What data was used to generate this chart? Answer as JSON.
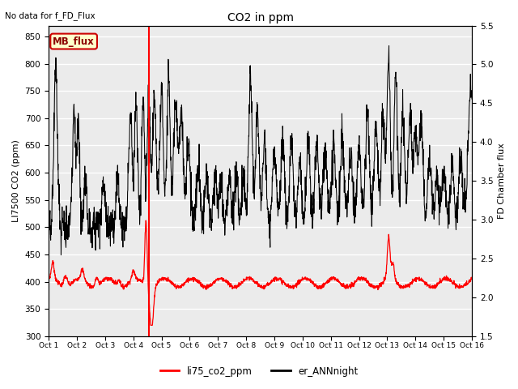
{
  "title": "CO2 in ppm",
  "title_top_left": "No data for f_FD_Flux",
  "ylabel_left": "LI7500 CO2 (ppm)",
  "ylabel_right": "FD Chamber flux",
  "ylim_left": [
    300,
    870
  ],
  "ylim_right": [
    1.5,
    5.5
  ],
  "yticks_left": [
    300,
    350,
    400,
    450,
    500,
    550,
    600,
    650,
    700,
    750,
    800,
    850
  ],
  "yticks_right": [
    1.5,
    2.0,
    2.5,
    3.0,
    3.5,
    4.0,
    4.5,
    5.0,
    5.5
  ],
  "xtick_labels": [
    "Oct 1",
    "Oct 2",
    "Oct 3",
    "Oct 4",
    "Oct 5",
    "Oct 6",
    "Oct 7",
    "Oct 8",
    "Oct 9",
    "Oct 10",
    "Oct 11",
    "Oct 12",
    "Oct 13",
    "Oct 14",
    "Oct 15",
    "Oct 16"
  ],
  "legend_labels": [
    "li75_co2_ppm",
    "er_ANNnight"
  ],
  "legend_colors": [
    "red",
    "black"
  ],
  "mb_flux_label": "MB_flux",
  "mb_flux_bg": "#ffffcc",
  "mb_flux_border": "#cc0000",
  "mb_flux_text_color": "#8b0000",
  "red_line_color": "red",
  "black_line_color": "black",
  "plot_bg_color": "#ebebeb",
  "grid_color": "white",
  "vline_x": 3.55,
  "vline_color": "red",
  "n_points": 2000
}
